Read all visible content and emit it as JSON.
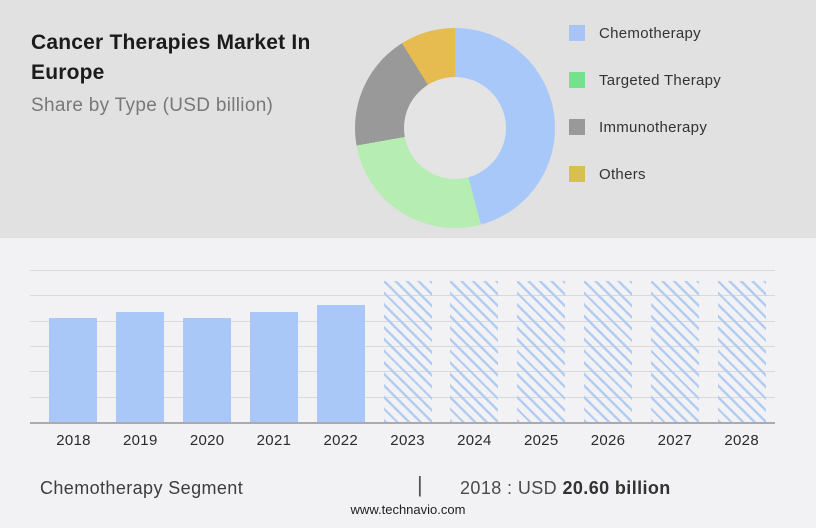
{
  "header": {
    "title_line1": "Cancer Therapies Market In",
    "title_line2": "Europe",
    "subtitle": "Share by Type (USD billion)"
  },
  "legend": {
    "items": [
      {
        "label": "Chemotherapy",
        "color": "#a8c4f5"
      },
      {
        "label": "Targeted Therapy",
        "color": "#77e08e"
      },
      {
        "label": "Immunotherapy",
        "color": "#999999"
      },
      {
        "label": "Others",
        "color": "#d8c050"
      }
    ]
  },
  "chart_data": [
    {
      "type": "pie",
      "subtype": "donut",
      "title": "Share by Type (USD billion)",
      "labels": [
        "Chemotherapy",
        "Targeted Therapy",
        "Immunotherapy",
        "Others"
      ],
      "values": [
        45.8,
        26.4,
        18.9,
        8.9
      ],
      "value_unit": "percent (estimated from segment angles)",
      "start_angle_deg": 0,
      "colors": [
        "#a8c8fa",
        "#b5edb2",
        "#999999",
        "#e6bb4f"
      ],
      "legend_position": "right"
    },
    {
      "type": "bar",
      "title": "Chemotherapy Segment",
      "unit": "USD billion",
      "categories": [
        "2018",
        "2019",
        "2020",
        "2021",
        "2022",
        "2023",
        "2024",
        "2025",
        "2026",
        "2027",
        "2028"
      ],
      "values": [
        20.6,
        21.8,
        20.6,
        21.8,
        23.1,
        27.8,
        27.8,
        27.8,
        27.8,
        27.8,
        27.8
      ],
      "forecast_from_index": 5,
      "bar_color": "#a9c7f7",
      "forecast_hatch_color": "#b3ccf2",
      "xlabel": "",
      "ylabel": "",
      "ylim": [
        0,
        30
      ],
      "gridline_step": 5,
      "grid": true,
      "y_tick_labels_visible": false,
      "annotation": "2018 : USD 20.60 billion"
    }
  ],
  "caption": {
    "segment_label": "Chemotherapy Segment",
    "separator": "|",
    "value_prefix": "2018 : USD",
    "value_bold": "20.60 billion"
  },
  "footer": {
    "url": "www.technavio.com"
  }
}
